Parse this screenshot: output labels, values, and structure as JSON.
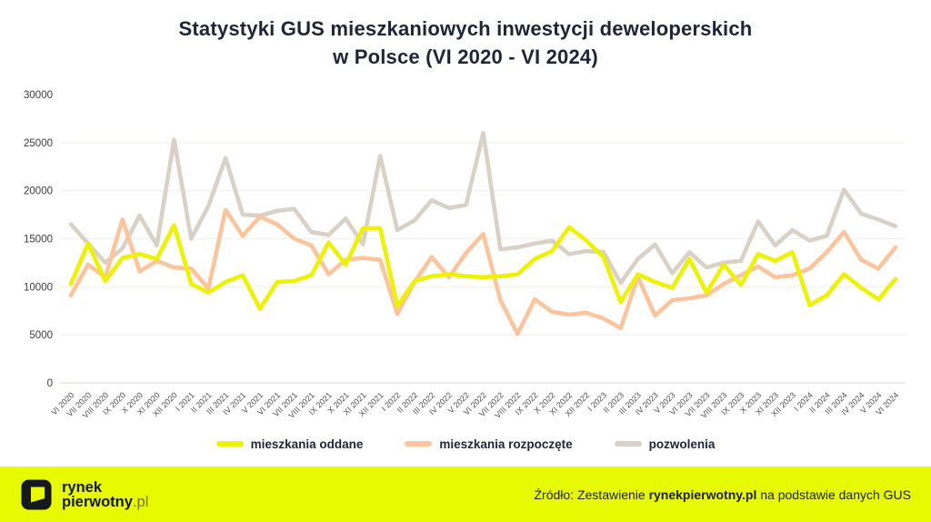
{
  "title": {
    "line1": "Statystyki GUS mieszkaniowych inwestycji deweloperskich",
    "line2": "w Polsce (VI 2020 - VI 2024)"
  },
  "chart_data": {
    "type": "line",
    "title": "Statystyki GUS mieszkaniowych inwestycji deweloperskich w Polsce (VI 2020 - VI 2024)",
    "xlabel": "",
    "ylabel": "",
    "ylim": [
      0,
      30000
    ],
    "yticks": [
      0,
      5000,
      10000,
      15000,
      20000,
      25000,
      30000
    ],
    "grid": true,
    "legend_position": "bottom",
    "categories": [
      "VI 2020",
      "VII 2020",
      "VIII 2020",
      "IX 2020",
      "X 2020",
      "XI 2020",
      "XII 2020",
      "I 2021",
      "II 2021",
      "III 2021",
      "IV 2021",
      "V 2021",
      "VI 2021",
      "VII 2021",
      "VIII 2021",
      "IX 2021",
      "X 2021",
      "XI 2021",
      "XII 2021",
      "I 2022",
      "II 2022",
      "III 2022",
      "IV 2022",
      "V 2022",
      "VI 2022",
      "VII 2022",
      "VIII 2022",
      "IX 2022",
      "X 2022",
      "XI 2022",
      "XII 2022",
      "I 2023",
      "II 2023",
      "III 2023",
      "IV 2023",
      "V 2023",
      "VI 2023",
      "VII 2023",
      "VIII 2023",
      "IX 2023",
      "X 2023",
      "XI 2023",
      "XII 2023",
      "I 2024",
      "II 2024",
      "III 2024",
      "IV 2024",
      "V 2024",
      "VI 2024"
    ],
    "series": [
      {
        "name": "mieszkania oddane",
        "color": "#edf102",
        "values": [
          10300,
          14500,
          10600,
          13000,
          13400,
          12900,
          16400,
          10300,
          9400,
          10500,
          11200,
          7700,
          10500,
          10600,
          11200,
          14600,
          12300,
          16100,
          16100,
          8000,
          10600,
          11100,
          11300,
          11100,
          11000,
          11100,
          11300,
          12900,
          13700,
          16200,
          14800,
          13100,
          8400,
          11300,
          10500,
          9900,
          12900,
          9400,
          12300,
          10200,
          13400,
          12700,
          13600,
          8100,
          9100,
          11300,
          9900,
          8700,
          10800
        ]
      },
      {
        "name": "mieszkania rozpoczęte",
        "color": "#fcc49c",
        "values": [
          9100,
          12300,
          11000,
          17000,
          11600,
          12700,
          12000,
          11900,
          9800,
          18000,
          15300,
          17300,
          16500,
          15000,
          14300,
          11300,
          12800,
          13000,
          12800,
          7200,
          10500,
          13100,
          11000,
          13500,
          15500,
          8600,
          5100,
          8700,
          7400,
          7100,
          7300,
          6700,
          5700,
          11000,
          7000,
          8600,
          8800,
          9100,
          10300,
          11200,
          12100,
          11000,
          11200,
          11900,
          13600,
          15700,
          12800,
          11900,
          14100
        ]
      },
      {
        "name": "pozwolenia",
        "color": "#d9d1c5",
        "values": [
          16500,
          14500,
          12500,
          14000,
          17400,
          14300,
          25300,
          15000,
          18400,
          23400,
          17500,
          17400,
          17900,
          18100,
          15700,
          15400,
          17100,
          14400,
          23600,
          15900,
          16900,
          19000,
          18200,
          18500,
          26000,
          13900,
          14100,
          14500,
          14800,
          13400,
          13700,
          13600,
          10400,
          12900,
          14400,
          11400,
          13600,
          12000,
          12500,
          12700,
          16800,
          14300,
          15900,
          14800,
          15300,
          20100,
          17600,
          17000,
          16300
        ]
      }
    ]
  },
  "legend": {
    "items": [
      "mieszkania oddane",
      "mieszkania rozpoczęte",
      "pozwolenia"
    ]
  },
  "footer": {
    "background": "#e8fa00",
    "logo_line1": "rynek",
    "logo_line2": "pierwotny",
    "logo_suffix": ".pl",
    "source_prefix": "Źródło: Zestawienie ",
    "source_brand": "rynekpierwotny.pl",
    "source_suffix": " na podstawie danych GUS"
  },
  "colors": {
    "title": "#1f2436",
    "axis_label": "#4c4c4c",
    "grid": "#f4f2ef",
    "zero_line": "#e5e3df",
    "logo_pl": "#6f7a10"
  }
}
